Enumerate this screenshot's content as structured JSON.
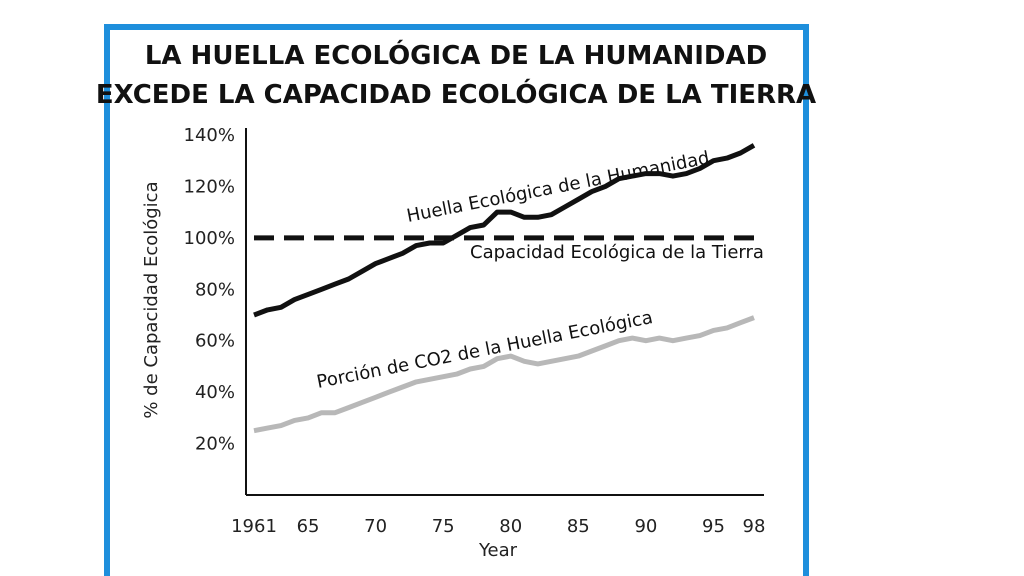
{
  "colors": {
    "frame": "#1e8fdc",
    "footprint_line": "#111111",
    "capacity_line": "#111111",
    "co2_line": "#b8b8b8"
  },
  "chart_data": {
    "type": "line",
    "title": [
      "LA HUELLA ECOLÓGICA DE LA HUMANIDAD",
      "EXCEDE LA CAPACIDAD ECOLÓGICA DE LA TIERRA"
    ],
    "xlabel": "Year",
    "ylabel": "% de Capacidad Ecológica",
    "xlim": [
      1961,
      1998
    ],
    "ylim": [
      0,
      140
    ],
    "x_ticks": [
      1961,
      1965,
      1970,
      1975,
      1980,
      1985,
      1990,
      1995,
      1998
    ],
    "x_tick_labels": [
      "1961",
      "65",
      "70",
      "75",
      "80",
      "85",
      "90",
      "95",
      "98"
    ],
    "y_ticks": [
      20,
      40,
      60,
      80,
      100,
      120,
      140
    ],
    "y_tick_labels": [
      "20%",
      "40%",
      "60%",
      "80%",
      "100%",
      "120%",
      "140%"
    ],
    "grid": false,
    "x": [
      1961,
      1962,
      1963,
      1964,
      1965,
      1966,
      1967,
      1968,
      1969,
      1970,
      1971,
      1972,
      1973,
      1974,
      1975,
      1976,
      1977,
      1978,
      1979,
      1980,
      1981,
      1982,
      1983,
      1984,
      1985,
      1986,
      1987,
      1988,
      1989,
      1990,
      1991,
      1992,
      1993,
      1994,
      1995,
      1996,
      1997,
      1998
    ],
    "series": [
      {
        "name": "Huella Ecológica de la Humanidad",
        "style": "solid",
        "values": [
          70,
          72,
          73,
          76,
          78,
          80,
          82,
          84,
          87,
          90,
          92,
          94,
          97,
          98,
          98,
          101,
          104,
          105,
          110,
          110,
          108,
          108,
          109,
          112,
          115,
          118,
          120,
          123,
          124,
          125,
          125,
          124,
          125,
          127,
          130,
          131,
          133,
          136
        ]
      },
      {
        "name": "Capacidad Ecológica de la Tierra",
        "style": "dashed",
        "values": [
          100,
          100,
          100,
          100,
          100,
          100,
          100,
          100,
          100,
          100,
          100,
          100,
          100,
          100,
          100,
          100,
          100,
          100,
          100,
          100,
          100,
          100,
          100,
          100,
          100,
          100,
          100,
          100,
          100,
          100,
          100,
          100,
          100,
          100,
          100,
          100,
          100,
          100
        ]
      },
      {
        "name": "Porción de CO2 de la Huella Ecológica",
        "style": "solid",
        "values": [
          25,
          26,
          27,
          29,
          30,
          32,
          32,
          34,
          36,
          38,
          40,
          42,
          44,
          45,
          46,
          47,
          49,
          50,
          53,
          54,
          52,
          51,
          52,
          53,
          54,
          56,
          58,
          60,
          61,
          60,
          61,
          60,
          61,
          62,
          64,
          65,
          67,
          69
        ]
      }
    ]
  }
}
